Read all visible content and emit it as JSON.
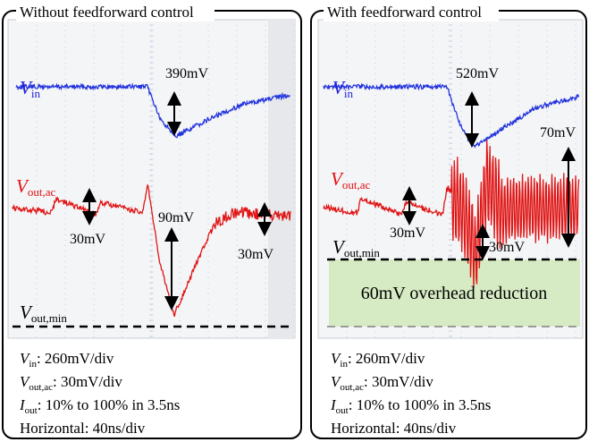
{
  "panels": [
    {
      "title": "Without feedforward control",
      "vin": {
        "main": "V",
        "sub": "in"
      },
      "vout_ac": {
        "main": "V",
        "sub": "out,ac"
      },
      "vout_min": {
        "main": "V",
        "sub": "out,min"
      },
      "annotations": [
        "390mV",
        "30mV",
        "90mV",
        "30mV"
      ],
      "notes": [
        {
          "main": "V",
          "sub": "in",
          "text": ":   260mV/div"
        },
        {
          "main": "V",
          "sub": "out,ac",
          "text": ": 30mV/div"
        },
        {
          "main": "I",
          "sub": "out",
          "text": ": 10% to 100% in 3.5ns"
        },
        {
          "main": "",
          "sub": "",
          "text": "Horizontal: 40ns/div"
        }
      ]
    },
    {
      "title": "With feedforward control",
      "vin": {
        "main": "V",
        "sub": "in"
      },
      "vout_ac": {
        "main": "V",
        "sub": "out,ac"
      },
      "vout_min": {
        "main": "V",
        "sub": "out,min"
      },
      "annotations": [
        "520mV",
        "70mV",
        "30mV",
        "30mV"
      ],
      "highlight": "60mV overhead reduction",
      "notes": [
        {
          "main": "V",
          "sub": "in",
          "text": ":   260mV/div"
        },
        {
          "main": "V",
          "sub": "out,ac",
          "text": ": 30mV/div"
        },
        {
          "main": "I",
          "sub": "out",
          "text": ": 10% to 100% in 3.5ns"
        },
        {
          "main": "",
          "sub": "",
          "text": "Horizontal: 40ns/div"
        }
      ]
    }
  ]
}
